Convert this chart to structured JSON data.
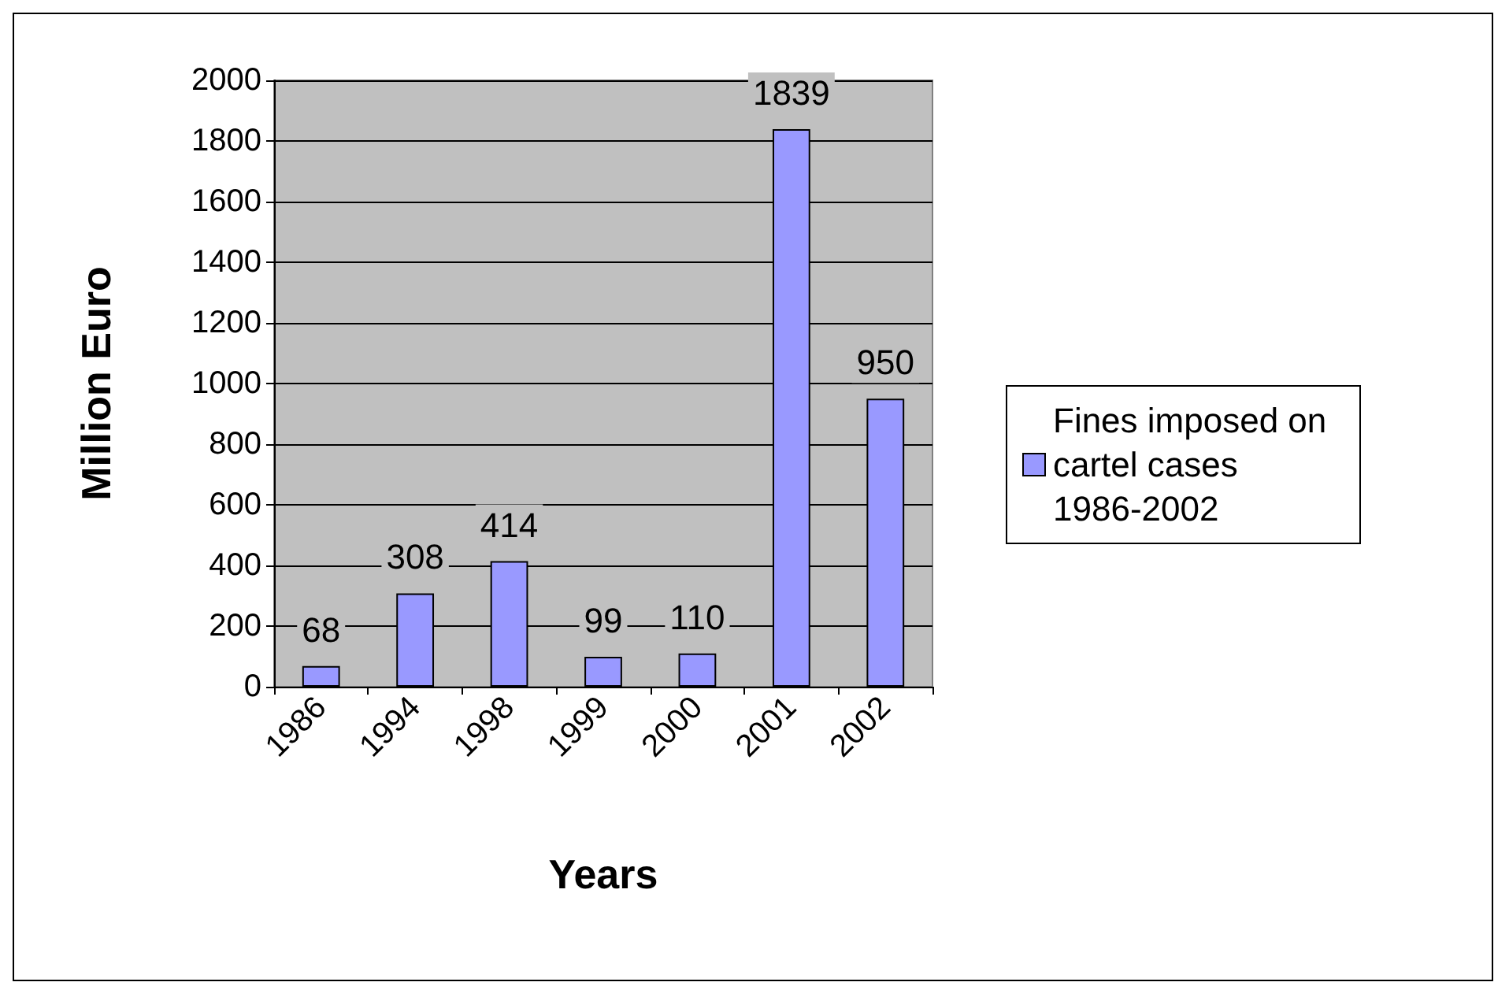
{
  "chart_data": {
    "type": "bar",
    "xlabel": "Years",
    "ylabel": "Million Euro",
    "categories": [
      "1986",
      "1994",
      "1998",
      "1999",
      "2000",
      "2001",
      "2002"
    ],
    "series": [
      {
        "name": "Fines imposed on cartel cases 1986-2002",
        "color": "#9999ff",
        "values": [
          68,
          308,
          414,
          99,
          110,
          1839,
          950
        ]
      }
    ],
    "ylim": [
      0,
      2000
    ],
    "yticks": [
      0,
      200,
      400,
      600,
      800,
      1000,
      1200,
      1400,
      1600,
      1800,
      2000
    ],
    "grid": "y",
    "legend": "right",
    "data_labels": true
  }
}
